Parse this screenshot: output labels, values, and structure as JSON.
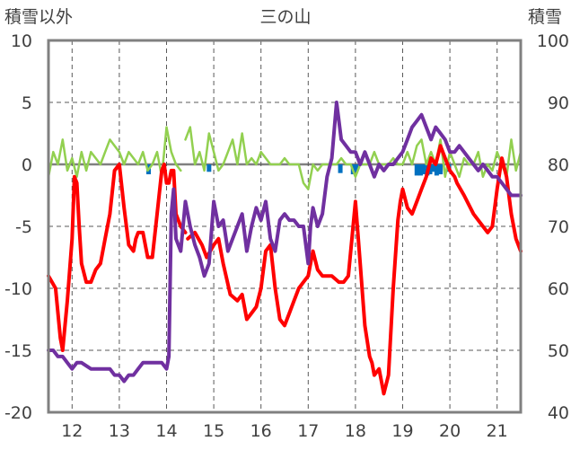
{
  "chart_data": {
    "type": "line",
    "title": "三の山",
    "ylabel_left": "積雪以外",
    "ylabel_right": "積雪",
    "ylim_left": [
      -20,
      10
    ],
    "ylim_right": [
      40,
      100
    ],
    "yticks_left": [
      "10",
      "5",
      "0",
      "-5",
      "-10",
      "-15",
      "-20"
    ],
    "yticks_right": [
      "100",
      "90",
      "80",
      "70",
      "60",
      "50",
      "40"
    ],
    "xlim": [
      11.5,
      21.5
    ],
    "xticks": [
      "12",
      "13",
      "14",
      "15",
      "16",
      "17",
      "18",
      "19",
      "20",
      "21"
    ],
    "grid": "dashed vertical at each day, dashed horizontal at every 5",
    "colors": {
      "red": "#ff0000",
      "purple": "#7030a0",
      "green": "#92d050",
      "blue": "#0070c0",
      "zero_line": "#808080",
      "frame": "#808080"
    },
    "series": [
      {
        "color": "red",
        "axis": "left",
        "x": [
          11.5,
          11.65,
          11.75,
          11.8,
          11.9,
          12.0,
          12.05,
          12.1,
          12.15,
          12.2,
          12.3,
          12.4,
          12.5,
          12.6,
          12.7,
          12.8,
          12.9,
          13.0,
          13.1,
          13.15,
          13.2,
          13.3,
          13.35,
          13.4,
          13.5,
          13.6,
          13.7,
          13.8,
          13.9,
          13.95,
          14.0,
          14.05,
          14.1,
          14.15,
          14.2,
          14.3,
          14.4
        ],
        "y": [
          -9.0,
          -10.0,
          -14.0,
          -15.0,
          -11.0,
          -6.0,
          -1.0,
          -1.5,
          -5.0,
          -8.0,
          -9.5,
          -9.5,
          -8.5,
          -8.0,
          -6.0,
          -4.0,
          -0.5,
          0.0,
          -3.5,
          -5.0,
          -6.5,
          -7.0,
          -6.0,
          -5.5,
          -5.5,
          -7.5,
          -7.5,
          -4.0,
          -0.5,
          0.0,
          -1.5,
          -1.5,
          -0.5,
          -0.5,
          -4.0,
          -5.0,
          -5.5
        ]
      },
      {
        "color": "red",
        "axis": "left",
        "x": [
          14.45,
          14.6,
          14.75,
          14.85,
          15.0,
          15.1,
          15.2,
          15.35,
          15.5,
          15.6,
          15.7,
          15.8,
          15.9,
          16.0,
          16.1,
          16.2,
          16.3,
          16.4,
          16.5,
          16.6,
          16.7,
          16.8,
          16.9,
          17.0,
          17.05,
          17.1,
          17.2,
          17.3,
          17.4,
          17.5,
          17.65,
          17.75,
          17.85,
          17.95,
          18.0,
          18.1,
          18.2,
          18.3,
          18.35,
          18.4,
          18.5,
          18.6,
          18.7,
          18.8,
          18.9,
          18.95,
          19.0,
          19.1,
          19.2,
          19.3,
          19.4,
          19.5,
          19.6,
          19.7,
          19.8,
          19.9,
          20.0,
          20.1,
          20.15,
          20.3,
          20.5,
          20.7,
          20.8,
          20.9,
          21.0,
          21.1,
          21.2,
          21.3,
          21.4,
          21.5
        ],
        "y": [
          -6.0,
          -5.5,
          -6.5,
          -7.5,
          -6.5,
          -6.0,
          -8.0,
          -10.5,
          -11.0,
          -10.5,
          -12.5,
          -12.0,
          -11.5,
          -10.0,
          -7.0,
          -6.5,
          -10.0,
          -12.5,
          -13.0,
          -12.0,
          -11.0,
          -10.0,
          -9.5,
          -9.0,
          -8.0,
          -7.0,
          -8.5,
          -9.0,
          -9.0,
          -9.0,
          -9.5,
          -9.5,
          -9.0,
          -5.0,
          -3.0,
          -8.0,
          -13.0,
          -15.5,
          -16.0,
          -17.0,
          -16.5,
          -18.5,
          -17.0,
          -10.0,
          -4.5,
          -3.0,
          -2.0,
          -3.5,
          -4.0,
          -3.0,
          -2.0,
          -1.0,
          0.5,
          0.0,
          1.5,
          0.5,
          -0.5,
          -1.0,
          -1.5,
          -2.5,
          -4.0,
          -5.0,
          -5.5,
          -5.0,
          -2.0,
          0.5,
          -1.0,
          -4.0,
          -6.0,
          -7.0
        ]
      },
      {
        "color": "purple",
        "axis": "right",
        "x": [
          11.5,
          11.6,
          11.7,
          11.8,
          11.9,
          12.0,
          12.1,
          12.2,
          12.4,
          12.6,
          12.8,
          12.9,
          13.0,
          13.1,
          13.2,
          13.3,
          13.4,
          13.5,
          13.6,
          13.7,
          13.8,
          13.9,
          14.0,
          14.05,
          14.1,
          14.15,
          14.2,
          14.3,
          14.4,
          14.5,
          14.6,
          14.7,
          14.8,
          14.9,
          15.0,
          15.1,
          15.2,
          15.3,
          15.4,
          15.5,
          15.6,
          15.7,
          15.8,
          15.9,
          16.0,
          16.1,
          16.2,
          16.3,
          16.4,
          16.5,
          16.6,
          16.7,
          16.8,
          16.9,
          17.0,
          17.05,
          17.1,
          17.2,
          17.3,
          17.4,
          17.5,
          17.6,
          17.7,
          17.8,
          17.9,
          18.0,
          18.1,
          18.2,
          18.3,
          18.4,
          18.5,
          18.6,
          18.7,
          18.8,
          18.9,
          19.0,
          19.1,
          19.2,
          19.3,
          19.4,
          19.5,
          19.6,
          19.7,
          19.8,
          19.9,
          20.0,
          20.1,
          20.2,
          20.3,
          20.4,
          20.5,
          20.6,
          20.7,
          20.8,
          20.9,
          21.0,
          21.1,
          21.2,
          21.3,
          21.4,
          21.5
        ],
        "y": [
          50,
          50,
          49,
          49,
          48,
          47,
          48,
          48,
          47,
          47,
          47,
          46,
          46,
          45,
          46,
          46,
          47,
          48,
          48,
          48,
          48,
          48,
          47,
          49,
          72,
          76,
          68,
          66,
          74,
          70,
          67,
          65,
          62,
          64,
          74,
          70,
          71,
          66,
          68,
          70,
          72,
          66,
          70,
          73,
          71,
          74,
          68,
          66,
          71,
          72,
          71,
          71,
          70,
          70,
          64,
          70,
          73,
          70,
          72,
          78,
          81,
          90,
          84,
          83,
          82,
          82,
          80,
          82,
          80,
          78,
          80,
          79,
          80,
          80,
          81,
          82,
          84,
          86,
          87,
          88,
          86,
          84,
          86,
          85,
          84,
          82,
          82,
          83,
          82,
          81,
          80,
          79,
          80,
          79,
          78,
          78,
          77,
          76,
          75,
          75,
          75
        ]
      },
      {
        "color": "green",
        "axis": "left",
        "x": [
          11.5,
          11.6,
          11.7,
          11.8,
          11.9,
          12.0,
          12.1,
          12.2,
          12.3,
          12.4,
          12.5,
          12.6,
          12.7,
          12.8,
          12.9,
          13.0,
          13.1,
          13.2,
          13.3,
          13.4,
          13.5,
          13.6,
          13.7,
          13.8,
          13.9,
          14.0,
          14.1,
          14.2,
          14.3
        ],
        "y": [
          -1.0,
          1.0,
          0.0,
          2.0,
          -0.5,
          0.5,
          -1.0,
          1.0,
          -0.5,
          1.0,
          0.5,
          0.0,
          1.0,
          2.0,
          1.5,
          1.0,
          0.0,
          1.0,
          0.5,
          0.0,
          1.0,
          -0.5,
          0.0,
          1.0,
          -1.0,
          3.0,
          1.0,
          0.0,
          -0.5
        ]
      },
      {
        "color": "green",
        "axis": "left",
        "x": [
          14.4,
          14.5,
          14.6,
          14.7,
          14.8,
          14.9,
          15.0,
          15.1,
          15.2,
          15.3,
          15.4,
          15.5,
          15.6,
          15.7,
          15.8,
          15.9,
          16.0,
          16.1,
          16.2,
          16.3,
          16.4,
          16.5,
          16.6,
          16.7,
          16.8,
          16.9,
          17.0,
          17.1,
          17.2,
          17.3,
          17.4,
          17.5,
          17.6,
          17.7,
          17.8,
          17.9,
          18.0,
          18.1,
          18.2,
          18.3,
          18.4,
          18.5,
          18.6,
          18.7,
          18.8,
          18.9,
          19.0,
          19.1,
          19.2,
          19.3,
          19.4,
          19.5,
          19.6,
          19.7,
          19.8,
          19.9,
          20.0,
          20.1,
          20.2,
          20.3,
          20.4,
          20.5,
          20.6,
          20.7,
          20.8,
          20.9,
          21.0,
          21.1,
          21.2,
          21.3,
          21.4,
          21.5
        ],
        "y": [
          2.0,
          3.0,
          0.0,
          1.0,
          -0.5,
          2.5,
          1.0,
          -0.5,
          0.0,
          1.0,
          2.0,
          0.0,
          2.5,
          0.0,
          0.5,
          0.0,
          1.0,
          0.5,
          0.0,
          0.0,
          0.0,
          0.5,
          0.0,
          0.0,
          0.0,
          -1.5,
          -2.0,
          0.0,
          -0.5,
          0.0,
          0.0,
          0.0,
          0.0,
          0.5,
          0.0,
          0.0,
          -1.0,
          0.0,
          0.0,
          0.0,
          1.0,
          0.0,
          0.0,
          0.0,
          0.5,
          0.0,
          0.0,
          1.0,
          0.0,
          1.5,
          2.0,
          0.0,
          1.0,
          0.0,
          2.0,
          -1.0,
          1.0,
          0.0,
          -1.0,
          0.5,
          0.0,
          0.0,
          1.0,
          -1.0,
          0.0,
          -0.5,
          1.0,
          0.0,
          -1.0,
          2.0,
          -0.5,
          1.0
        ]
      }
    ],
    "bars": {
      "color": "blue",
      "axis": "left",
      "x": [
        13.62,
        14.9,
        17.68,
        17.95,
        18.02,
        19.3,
        19.38,
        19.45,
        19.52,
        19.58,
        19.65,
        19.72,
        19.8,
        19.98
      ],
      "y": [
        -0.8,
        -0.6,
        -0.7,
        -0.8,
        -0.6,
        -0.9,
        -0.9,
        -0.8,
        -0.9,
        -0.8,
        -0.6,
        -0.9,
        -0.8,
        -0.6
      ]
    }
  }
}
